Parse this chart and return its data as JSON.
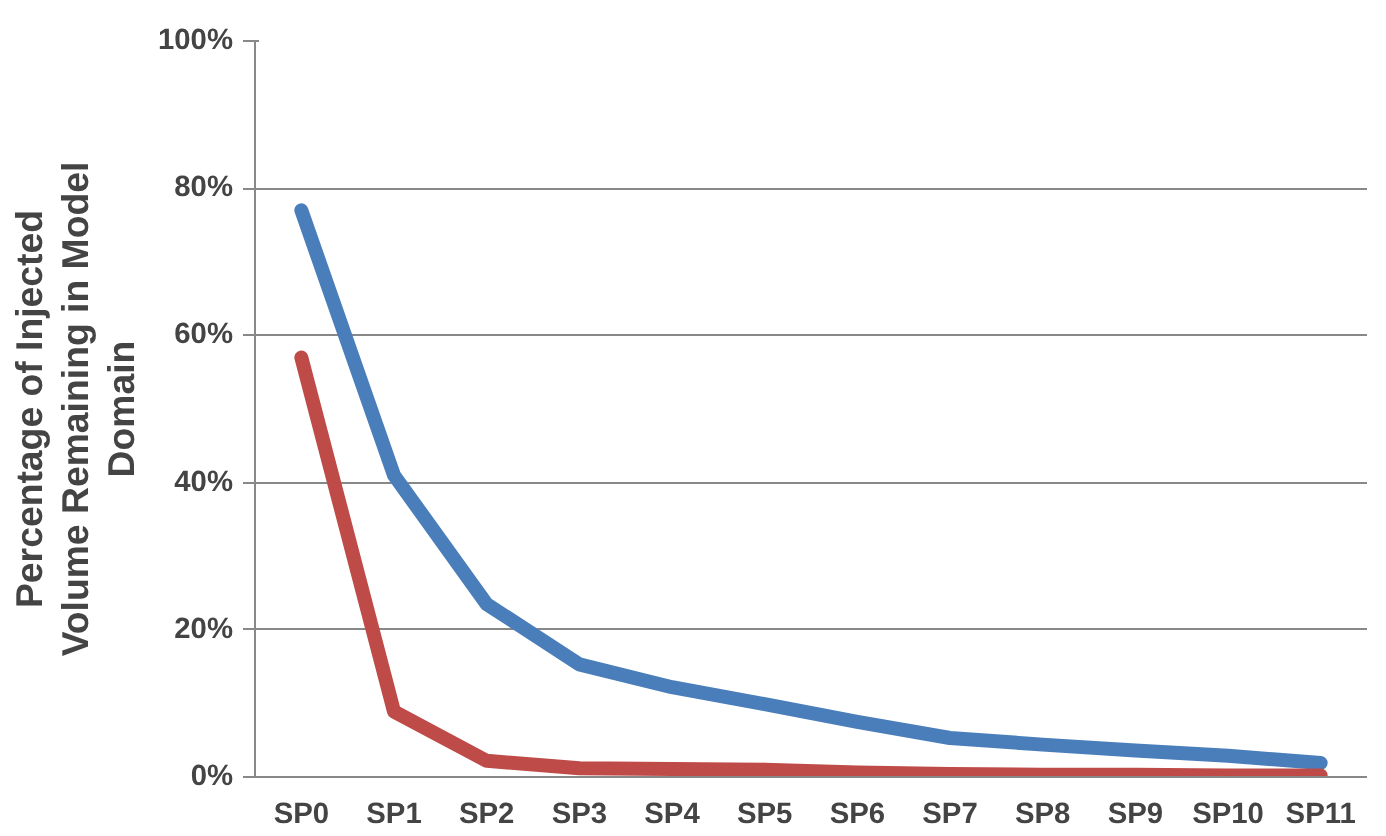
{
  "chart_data": {
    "type": "line",
    "ylabel": "Percentage of Injected Volume Remaining in Model Domain",
    "categories": [
      "SP0",
      "SP1",
      "SP2",
      "SP3",
      "SP4",
      "SP5",
      "SP6",
      "SP7",
      "SP8",
      "SP9",
      "SP10",
      "SP11"
    ],
    "series": [
      {
        "color": "#4a7ebb",
        "values": [
          77,
          41,
          23.5,
          15.3,
          12.2,
          9.9,
          7.5,
          5.3,
          4.4,
          3.6,
          2.9,
          1.9
        ]
      },
      {
        "color": "#be4b48",
        "values": [
          57,
          8.9,
          2.2,
          1.2,
          1.1,
          1.0,
          0.6,
          0.4,
          0.3,
          0.3,
          0.2,
          0.2
        ]
      }
    ],
    "ylim": [
      0,
      100
    ],
    "yticks": [
      {
        "value": 0,
        "label": "0%"
      },
      {
        "value": 20,
        "label": "20%"
      },
      {
        "value": 40,
        "label": "40%"
      },
      {
        "value": 60,
        "label": "60%"
      },
      {
        "value": 80,
        "label": "80%"
      },
      {
        "value": 100,
        "label": "100%"
      }
    ],
    "grid": "y",
    "marker": "none",
    "line_style": "solid"
  }
}
